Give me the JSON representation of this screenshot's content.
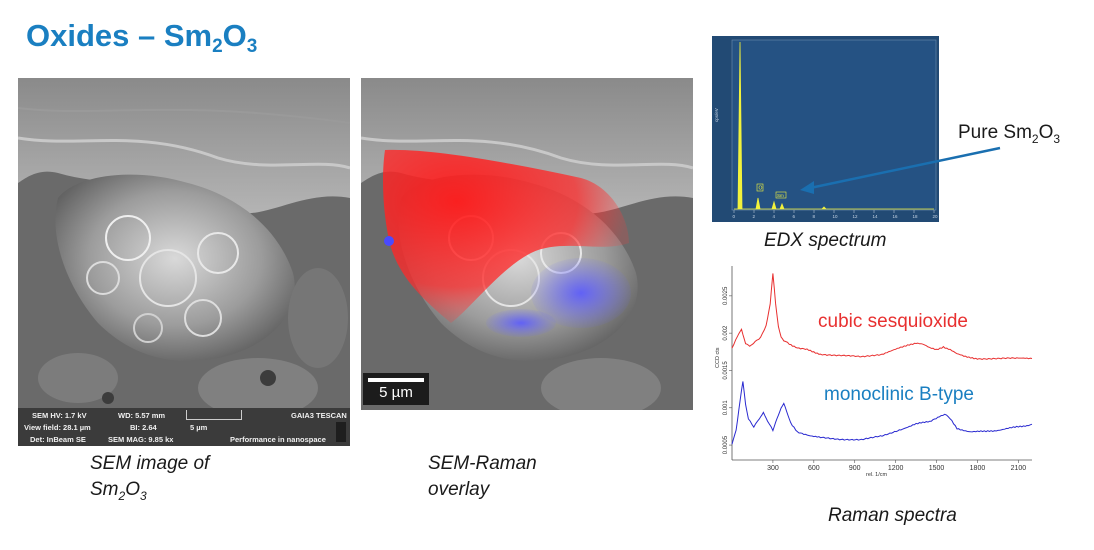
{
  "slide": {
    "title_main": "Oxides – Sm",
    "title_sub1": "2",
    "title_mid": "O",
    "title_sub2": "3"
  },
  "sem_panel": {
    "info": {
      "hv": "SEM HV: 1.7 kV",
      "wd": "WD: 5.57 mm",
      "brand": "GAIA3 TESCAN",
      "view_field": "View field: 28.1 µm",
      "bi": "BI: 2.64",
      "scale": "5 µm",
      "det": "Det: InBeam SE",
      "mag": "SEM MAG: 9.85 kx",
      "tagline": "Performance in nanospace"
    },
    "caption_line1": "SEM image of",
    "caption_line2_a": "Sm",
    "caption_line2_sub1": "2",
    "caption_line2_b": "O",
    "caption_line2_sub2": "3"
  },
  "overlay_panel": {
    "scalebar_label": "5 µm",
    "caption_line1": "SEM-Raman",
    "caption_line2": "overlay",
    "colors": {
      "red_phase": "#ff1a1a",
      "blue_phase": "#4a4aff"
    }
  },
  "edx_panel": {
    "caption": "EDX spectrum",
    "ylabel": "cps/eV",
    "peak_labels": [
      "O",
      "Sm"
    ],
    "x_ticks": [
      "0",
      "2",
      "4",
      "6",
      "8",
      "10",
      "12",
      "14",
      "16",
      "18",
      "20"
    ],
    "background": "#224a74",
    "trace_color": "#f2f23c"
  },
  "annotation": {
    "pure_a": "Pure Sm",
    "pure_sub1": "2",
    "pure_b": "O",
    "pure_sub2": "3",
    "arrow_color": "#1a6fb0"
  },
  "chart_data": {
    "type": "line",
    "title": "Raman spectra",
    "xlabel": "rel. 1/cm",
    "ylabel": "CCD cts",
    "xlim": [
      0,
      2200
    ],
    "ylim": [
      0.0003,
      0.0029
    ],
    "x_ticks": [
      300,
      600,
      900,
      1200,
      1500,
      1800,
      2100
    ],
    "y_ticks": [
      0.0005,
      0.001,
      0.0015,
      0.002,
      0.0025
    ],
    "y_tick_labels": [
      "0.0005",
      "0.001",
      "0.0015",
      "0.002",
      "0.0025"
    ],
    "series": [
      {
        "name": "cubic sesquioxide",
        "color": "#e83030",
        "x": [
          0,
          40,
          70,
          100,
          130,
          170,
          210,
          250,
          280,
          300,
          320,
          340,
          360,
          380,
          420,
          480,
          550,
          650,
          800,
          950,
          1100,
          1200,
          1300,
          1350,
          1400,
          1450,
          1500,
          1550,
          1600,
          1650,
          1700,
          1800,
          1950,
          2100,
          2200
        ],
        "y": [
          0.0018,
          0.00195,
          0.00205,
          0.00185,
          0.00182,
          0.00188,
          0.00195,
          0.0021,
          0.0024,
          0.0028,
          0.0024,
          0.0021,
          0.00195,
          0.0019,
          0.00185,
          0.0018,
          0.00178,
          0.00172,
          0.0017,
          0.00168,
          0.00172,
          0.00178,
          0.00185,
          0.00187,
          0.00185,
          0.0018,
          0.00178,
          0.00182,
          0.00178,
          0.00172,
          0.00169,
          0.00166,
          0.00166,
          0.00166,
          0.00166
        ]
      },
      {
        "name": "monoclinic B-type",
        "color": "#2a2ad0",
        "x": [
          0,
          30,
          60,
          80,
          100,
          120,
          160,
          200,
          230,
          260,
          300,
          330,
          360,
          380,
          400,
          430,
          480,
          550,
          650,
          800,
          950,
          1100,
          1250,
          1350,
          1450,
          1520,
          1560,
          1600,
          1650,
          1750,
          1850,
          1950,
          2050,
          2150,
          2200
        ],
        "y": [
          0.0005,
          0.0007,
          0.0011,
          0.00135,
          0.00105,
          0.00085,
          0.00075,
          0.00085,
          0.00095,
          0.00082,
          0.0007,
          0.00085,
          0.001,
          0.00105,
          0.00095,
          0.0008,
          0.00068,
          0.00064,
          0.0006,
          0.00058,
          0.00057,
          0.00062,
          0.00072,
          0.00078,
          0.00082,
          0.00088,
          0.00092,
          0.00085,
          0.00072,
          0.00068,
          0.00068,
          0.0007,
          0.00073,
          0.00076,
          0.00078
        ]
      }
    ],
    "legend": "inline",
    "grid": false
  },
  "raman_panel": {
    "caption": "Raman spectra"
  }
}
